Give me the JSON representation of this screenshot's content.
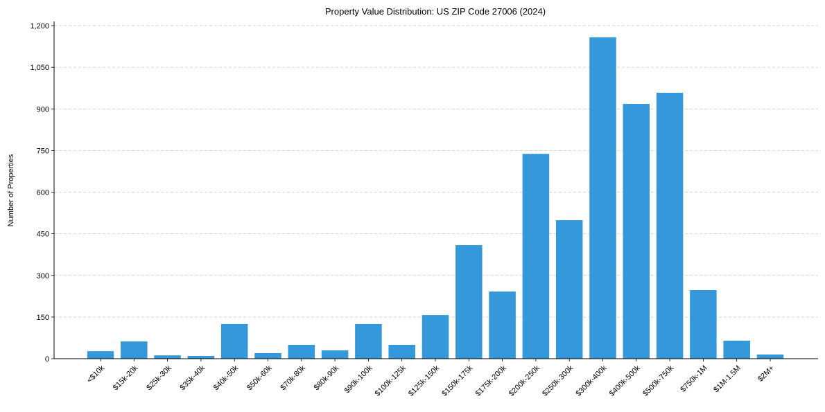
{
  "chart_data": {
    "type": "bar",
    "title": "Property Value Distribution: US ZIP Code 27006 (2024)",
    "xlabel": "",
    "ylabel": "Number of Properties",
    "ylim": [
      0,
      1215
    ],
    "yticks": [
      0,
      150,
      300,
      450,
      600,
      750,
      900,
      1050,
      1200
    ],
    "grid": "y-dashed",
    "bar_color": "#3498db",
    "categories": [
      "<$10k",
      "$15k-20k",
      "$25k-30k",
      "$35k-40k",
      "$40k-50k",
      "$50k-60k",
      "$70k-80k",
      "$80k-90k",
      "$90k-100k",
      "$100k-125k",
      "$125k-150k",
      "$150k-175k",
      "$175k-200k",
      "$200k-250k",
      "$250k-300k",
      "$300k-400k",
      "$400k-500k",
      "$500k-750k",
      "$750k-1M",
      "$1M-1.5M",
      "$2M+"
    ],
    "values": [
      27,
      62,
      12,
      10,
      125,
      20,
      50,
      30,
      125,
      50,
      157,
      409,
      242,
      738,
      499,
      1158,
      918,
      958,
      247,
      65,
      15
    ]
  }
}
